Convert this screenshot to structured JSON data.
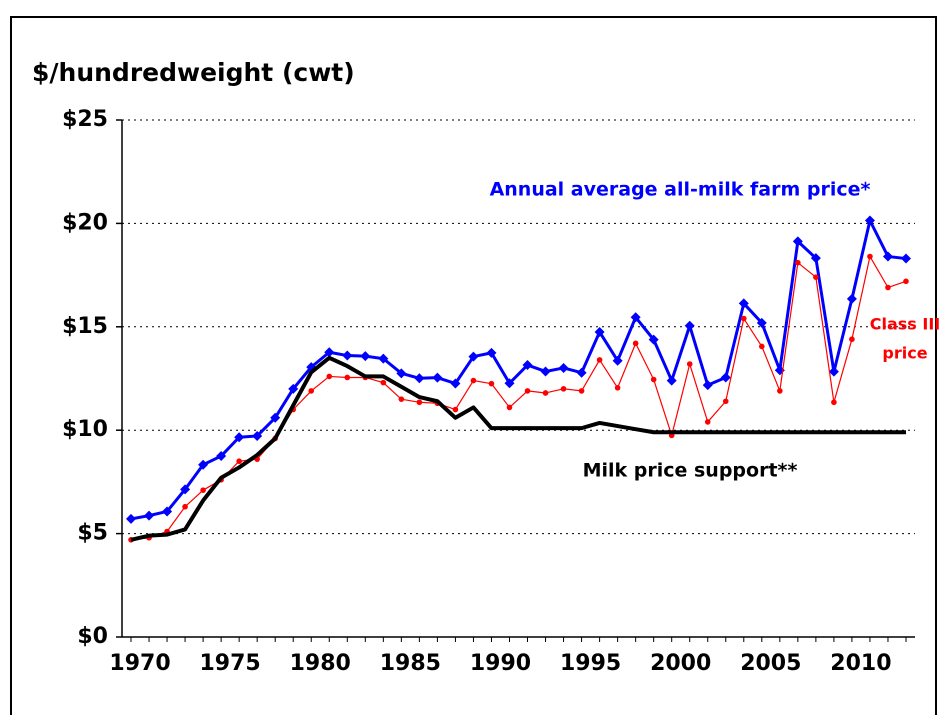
{
  "chart_data": {
    "type": "line",
    "y_axis_label": "$/hundredweight (cwt)",
    "x": [
      1970,
      1971,
      1972,
      1973,
      1974,
      1975,
      1976,
      1977,
      1978,
      1979,
      1980,
      1981,
      1982,
      1983,
      1984,
      1985,
      1986,
      1987,
      1988,
      1989,
      1990,
      1991,
      1992,
      1993,
      1994,
      1995,
      1996,
      1997,
      1998,
      1999,
      2000,
      2001,
      2002,
      2003,
      2004,
      2005,
      2006,
      2007,
      2008,
      2009,
      2010,
      2011,
      2012,
      2013
    ],
    "series": [
      {
        "name": "Annual average all-milk farm price*",
        "color": "#0000ff",
        "marker": "diamond",
        "values": [
          5.71,
          5.87,
          6.07,
          7.14,
          8.33,
          8.75,
          9.66,
          9.72,
          10.6,
          12.0,
          13.05,
          13.77,
          13.61,
          13.58,
          13.46,
          12.75,
          12.51,
          12.54,
          12.26,
          13.56,
          13.74,
          12.27,
          13.15,
          12.84,
          13.01,
          12.78,
          14.75,
          13.36,
          15.46,
          14.38,
          12.4,
          15.05,
          12.18,
          12.55,
          16.13,
          15.19,
          12.9,
          19.13,
          18.32,
          12.83,
          16.35,
          20.14,
          18.4,
          18.3
        ]
      },
      {
        "name": "Class III price",
        "color": "#ff0000",
        "marker": "dot",
        "values": [
          4.7,
          4.8,
          5.1,
          6.3,
          7.1,
          7.6,
          8.5,
          8.6,
          9.6,
          11.0,
          11.9,
          12.6,
          12.55,
          12.55,
          12.3,
          11.5,
          11.35,
          11.3,
          11.0,
          12.4,
          12.25,
          11.1,
          11.9,
          11.8,
          12.0,
          11.9,
          13.4,
          12.05,
          14.2,
          12.45,
          9.75,
          13.2,
          10.4,
          11.4,
          15.4,
          14.05,
          11.9,
          18.1,
          17.4,
          11.35,
          14.4,
          18.4,
          16.9,
          17.2
        ]
      },
      {
        "name": "Milk price support**",
        "color": "#000000",
        "marker": "none",
        "values": [
          4.7,
          4.9,
          4.95,
          5.2,
          6.6,
          7.7,
          8.2,
          8.8,
          9.6,
          11.2,
          12.8,
          13.5,
          13.1,
          12.6,
          12.6,
          12.1,
          11.6,
          11.4,
          10.6,
          11.1,
          10.1,
          10.1,
          10.1,
          10.1,
          10.1,
          10.1,
          10.35,
          10.2,
          10.05,
          9.9,
          9.9,
          9.9,
          9.9,
          9.9,
          9.9,
          9.9,
          9.9,
          9.9,
          9.9,
          9.9,
          9.9,
          9.9,
          9.9,
          9.9
        ]
      }
    ],
    "annotations": [
      {
        "lines": [
          "Annual average all-milk farm price*"
        ],
        "color": "#0000ff"
      },
      {
        "lines": [
          "Class III",
          "price"
        ],
        "color": "#ff0000"
      },
      {
        "lines": [
          "Milk price support**"
        ],
        "color": "#000000"
      }
    ],
    "xlim": [
      1969.5,
      2013.5
    ],
    "ylim": [
      0,
      25
    ],
    "xticks": [
      1970,
      1975,
      1980,
      1985,
      1990,
      1995,
      2000,
      2005,
      2010
    ],
    "yticks": [
      {
        "value": 0,
        "label": "$0"
      },
      {
        "value": 5,
        "label": "$5"
      },
      {
        "value": 10,
        "label": "$10"
      },
      {
        "value": 15,
        "label": "$15"
      },
      {
        "value": 20,
        "label": "$20"
      },
      {
        "value": 25,
        "label": "$25"
      }
    ],
    "grid": true
  }
}
